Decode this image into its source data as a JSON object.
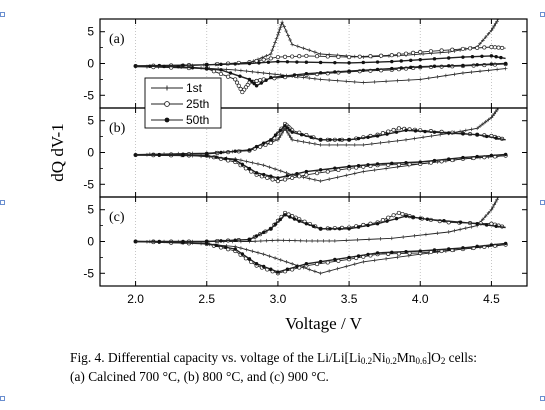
{
  "chart_data": {
    "type": "line",
    "xlabel": "Voltage / V",
    "ylabel": "dQ dV-1",
    "xlim": [
      1.75,
      4.75
    ],
    "ylim": [
      -7,
      7
    ],
    "x_ticks": [
      "2.0",
      "2.5",
      "3.0",
      "3.5",
      "4.0",
      "4.5"
    ],
    "y_ticks": [
      "5",
      "0",
      "-5"
    ],
    "grid": "vertical-dotted",
    "legend": {
      "placement": "left-middle",
      "entries": [
        "1st",
        "25th",
        "50th"
      ]
    },
    "panels": [
      {
        "label": "(a)",
        "series": [
          {
            "name": "1st",
            "marker": "plus",
            "charge": [
              [
                2.0,
                -0.5
              ],
              [
                2.4,
                -0.3
              ],
              [
                2.8,
                0.1
              ],
              [
                2.95,
                1.5
              ],
              [
                3.0,
                4.5
              ],
              [
                3.03,
                6.5
              ],
              [
                3.1,
                3.0
              ],
              [
                3.3,
                1.5
              ],
              [
                3.6,
                1.0
              ],
              [
                3.9,
                1.3
              ],
              [
                4.2,
                1.8
              ],
              [
                4.4,
                2.6
              ],
              [
                4.5,
                5.2
              ],
              [
                4.55,
                7.0
              ]
            ],
            "discharge": [
              [
                4.6,
                -0.8
              ],
              [
                4.3,
                -1.5
              ],
              [
                4.0,
                -2.5
              ],
              [
                3.6,
                -3.0
              ],
              [
                3.3,
                -2.5
              ],
              [
                3.1,
                -2.0
              ],
              [
                2.9,
                -1.5
              ],
              [
                2.7,
                -1.0
              ],
              [
                2.4,
                -0.6
              ],
              [
                2.0,
                -0.5
              ]
            ]
          },
          {
            "name": "25th",
            "marker": "circle",
            "charge": [
              [
                2.0,
                -0.4
              ],
              [
                2.5,
                -0.2
              ],
              [
                2.8,
                0.2
              ],
              [
                3.0,
                1.0
              ],
              [
                3.2,
                1.2
              ],
              [
                3.5,
                1.0
              ],
              [
                3.8,
                1.3
              ],
              [
                4.0,
                1.8
              ],
              [
                4.3,
                2.3
              ],
              [
                4.5,
                2.6
              ],
              [
                4.6,
                2.4
              ]
            ],
            "discharge": [
              [
                4.6,
                -0.1
              ],
              [
                4.3,
                -0.4
              ],
              [
                4.0,
                -0.6
              ],
              [
                3.8,
                -1.0
              ],
              [
                3.5,
                -1.3
              ],
              [
                3.2,
                -1.8
              ],
              [
                2.9,
                -2.5
              ],
              [
                2.8,
                -3.0
              ],
              [
                2.75,
                -4.5
              ],
              [
                2.7,
                -2.5
              ],
              [
                2.5,
                -0.8
              ],
              [
                2.0,
                -0.5
              ]
            ]
          },
          {
            "name": "50th",
            "marker": "filled-circle",
            "charge": [
              [
                2.0,
                -0.4
              ],
              [
                2.5,
                -0.2
              ],
              [
                2.8,
                0.0
              ],
              [
                3.0,
                0.3
              ],
              [
                3.2,
                0.2
              ],
              [
                3.5,
                0.1
              ],
              [
                3.8,
                0.3
              ],
              [
                4.0,
                0.6
              ],
              [
                4.3,
                1.0
              ],
              [
                4.5,
                1.2
              ],
              [
                4.6,
                0.8
              ]
            ],
            "discharge": [
              [
                4.6,
                0.0
              ],
              [
                4.3,
                -0.3
              ],
              [
                4.0,
                -0.5
              ],
              [
                3.8,
                -0.8
              ],
              [
                3.5,
                -1.2
              ],
              [
                3.2,
                -1.6
              ],
              [
                2.95,
                -2.2
              ],
              [
                2.85,
                -3.5
              ],
              [
                2.8,
                -2.5
              ],
              [
                2.6,
                -1.0
              ],
              [
                2.3,
                -0.5
              ],
              [
                2.0,
                -0.4
              ]
            ]
          }
        ]
      },
      {
        "label": "(b)",
        "series": [
          {
            "name": "1st",
            "marker": "plus",
            "charge": [
              [
                2.0,
                -0.3
              ],
              [
                2.5,
                -0.1
              ],
              [
                2.8,
                0.3
              ],
              [
                3.0,
                2.0
              ],
              [
                3.05,
                3.8
              ],
              [
                3.1,
                2.0
              ],
              [
                3.3,
                1.2
              ],
              [
                3.6,
                1.2
              ],
              [
                3.9,
                2.0
              ],
              [
                4.2,
                3.0
              ],
              [
                4.4,
                3.8
              ],
              [
                4.5,
                5.5
              ],
              [
                4.55,
                7.0
              ]
            ],
            "discharge": [
              [
                4.6,
                -0.5
              ],
              [
                4.3,
                -1.0
              ],
              [
                4.0,
                -1.8
              ],
              [
                3.6,
                -3.0
              ],
              [
                3.3,
                -4.5
              ],
              [
                3.1,
                -3.5
              ],
              [
                2.9,
                -2.0
              ],
              [
                2.7,
                -1.0
              ],
              [
                2.4,
                -0.5
              ],
              [
                2.0,
                -0.3
              ]
            ]
          },
          {
            "name": "25th",
            "marker": "circle",
            "charge": [
              [
                2.0,
                -0.4
              ],
              [
                2.5,
                -0.2
              ],
              [
                2.8,
                0.3
              ],
              [
                2.95,
                1.5
              ],
              [
                3.05,
                4.5
              ],
              [
                3.1,
                3.5
              ],
              [
                3.3,
                2.0
              ],
              [
                3.5,
                2.0
              ],
              [
                3.7,
                2.8
              ],
              [
                3.85,
                3.8
              ],
              [
                4.0,
                3.5
              ],
              [
                4.3,
                3.0
              ],
              [
                4.5,
                2.6
              ],
              [
                4.6,
                2.0
              ]
            ],
            "discharge": [
              [
                4.6,
                -0.5
              ],
              [
                4.3,
                -1.0
              ],
              [
                4.0,
                -1.8
              ],
              [
                3.7,
                -2.0
              ],
              [
                3.5,
                -2.5
              ],
              [
                3.2,
                -3.5
              ],
              [
                3.0,
                -4.5
              ],
              [
                2.85,
                -3.5
              ],
              [
                2.7,
                -1.5
              ],
              [
                2.5,
                -0.5
              ],
              [
                2.0,
                -0.4
              ]
            ]
          },
          {
            "name": "50th",
            "marker": "filled-circle",
            "charge": [
              [
                2.0,
                -0.4
              ],
              [
                2.5,
                -0.2
              ],
              [
                2.8,
                0.4
              ],
              [
                2.95,
                2.0
              ],
              [
                3.05,
                4.2
              ],
              [
                3.1,
                3.2
              ],
              [
                3.3,
                2.0
              ],
              [
                3.5,
                2.0
              ],
              [
                3.7,
                2.6
              ],
              [
                3.9,
                3.5
              ],
              [
                4.1,
                3.2
              ],
              [
                4.4,
                2.8
              ],
              [
                4.6,
                2.0
              ]
            ],
            "discharge": [
              [
                4.6,
                -0.3
              ],
              [
                4.3,
                -0.8
              ],
              [
                4.0,
                -1.5
              ],
              [
                3.7,
                -1.8
              ],
              [
                3.5,
                -2.2
              ],
              [
                3.2,
                -3.0
              ],
              [
                3.0,
                -4.0
              ],
              [
                2.85,
                -3.2
              ],
              [
                2.7,
                -1.2
              ],
              [
                2.5,
                -0.5
              ],
              [
                2.0,
                -0.4
              ]
            ]
          }
        ]
      },
      {
        "label": "(c)",
        "series": [
          {
            "name": "1st",
            "marker": "plus",
            "charge": [
              [
                2.0,
                0.0
              ],
              [
                2.5,
                0.0
              ],
              [
                2.8,
                0.0
              ],
              [
                3.0,
                0.2
              ],
              [
                3.2,
                0.1
              ],
              [
                3.4,
                0.1
              ],
              [
                3.8,
                0.5
              ],
              [
                4.2,
                1.5
              ],
              [
                4.4,
                2.5
              ],
              [
                4.5,
                5.0
              ],
              [
                4.55,
                7.0
              ]
            ],
            "discharge": [
              [
                4.6,
                -0.5
              ],
              [
                4.3,
                -1.2
              ],
              [
                4.0,
                -2.0
              ],
              [
                3.6,
                -3.2
              ],
              [
                3.3,
                -5.0
              ],
              [
                3.1,
                -3.5
              ],
              [
                2.9,
                -2.0
              ],
              [
                2.7,
                -0.8
              ],
              [
                2.4,
                -0.2
              ],
              [
                2.0,
                0.0
              ]
            ]
          },
          {
            "name": "25th",
            "marker": "circle",
            "charge": [
              [
                2.0,
                0.0
              ],
              [
                2.5,
                0.0
              ],
              [
                2.8,
                0.3
              ],
              [
                2.95,
                2.0
              ],
              [
                3.05,
                4.5
              ],
              [
                3.15,
                3.5
              ],
              [
                3.3,
                2.0
              ],
              [
                3.5,
                2.2
              ],
              [
                3.7,
                3.0
              ],
              [
                3.85,
                4.5
              ],
              [
                3.95,
                3.8
              ],
              [
                4.2,
                3.0
              ],
              [
                4.5,
                2.8
              ],
              [
                4.6,
                2.2
              ]
            ],
            "discharge": [
              [
                4.6,
                -0.5
              ],
              [
                4.3,
                -1.2
              ],
              [
                4.0,
                -1.8
              ],
              [
                3.7,
                -2.0
              ],
              [
                3.5,
                -2.8
              ],
              [
                3.2,
                -3.8
              ],
              [
                3.0,
                -5.0
              ],
              [
                2.85,
                -3.8
              ],
              [
                2.7,
                -1.5
              ],
              [
                2.5,
                -0.4
              ],
              [
                2.0,
                0.0
              ]
            ]
          },
          {
            "name": "50th",
            "marker": "filled-circle",
            "charge": [
              [
                2.0,
                0.0
              ],
              [
                2.5,
                0.0
              ],
              [
                2.8,
                0.3
              ],
              [
                2.95,
                2.0
              ],
              [
                3.05,
                4.2
              ],
              [
                3.15,
                3.2
              ],
              [
                3.3,
                2.0
              ],
              [
                3.5,
                2.0
              ],
              [
                3.7,
                2.8
              ],
              [
                3.9,
                4.0
              ],
              [
                4.05,
                3.5
              ],
              [
                4.4,
                2.8
              ],
              [
                4.6,
                2.2
              ]
            ],
            "discharge": [
              [
                4.6,
                -0.3
              ],
              [
                4.3,
                -1.0
              ],
              [
                4.0,
                -1.5
              ],
              [
                3.7,
                -1.8
              ],
              [
                3.5,
                -2.5
              ],
              [
                3.2,
                -3.5
              ],
              [
                3.0,
                -4.8
              ],
              [
                2.85,
                -3.5
              ],
              [
                2.7,
                -1.2
              ],
              [
                2.5,
                -0.3
              ],
              [
                2.0,
                0.0
              ]
            ]
          }
        ]
      }
    ]
  },
  "caption": {
    "text_1": "Fig. 4.  Differential capacity vs. voltage of the Li/Li[Li",
    "sub_1": "0.2",
    "text_2": "Ni",
    "sub_2": "0.2",
    "text_3": "Mn",
    "sub_3": "0.6",
    "text_4": "]O",
    "sub_4": "2",
    "text_5": " cells:",
    "line_2": "(a) Calcined 700 °C, (b) 800 °C, and (c) 900 °C."
  }
}
